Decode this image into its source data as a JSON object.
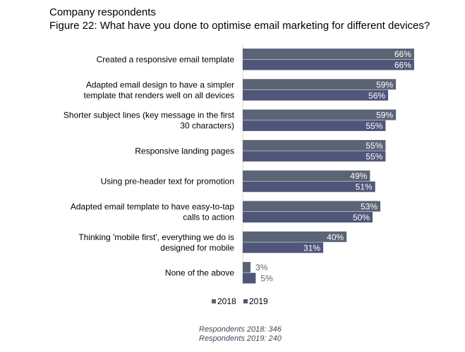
{
  "header": {
    "line1": "Company respondents",
    "line2": "Figure 22: What have you done to optimise email marketing for different devices?"
  },
  "chart_data": {
    "type": "bar",
    "orientation": "horizontal",
    "categories": [
      [
        "Created a responsive email template"
      ],
      [
        "Adapted email design to have a simpler",
        "template that renders well on all devices"
      ],
      [
        "Shorter subject lines (key message in the first",
        "30 characters)"
      ],
      [
        "Responsive landing pages"
      ],
      [
        "Using pre-header text for promotion"
      ],
      [
        "Adapted email template to have easy-to-tap",
        "calls to action"
      ],
      [
        "Thinking 'mobile first', everything we do is",
        "designed for mobile"
      ],
      [
        "None of the above"
      ]
    ],
    "series": [
      {
        "name": "2018",
        "values": [
          66,
          59,
          59,
          55,
          49,
          53,
          40,
          3
        ],
        "color": "#5a6475"
      },
      {
        "name": "2019",
        "values": [
          66,
          56,
          55,
          55,
          51,
          50,
          31,
          5
        ],
        "color": "#50557a"
      }
    ],
    "value_suffix": "%",
    "xlim": [
      0,
      100
    ],
    "legend": "bottom"
  },
  "footnotes": [
    "Respondents 2018: 346",
    "Respondents 2019: 240"
  ]
}
